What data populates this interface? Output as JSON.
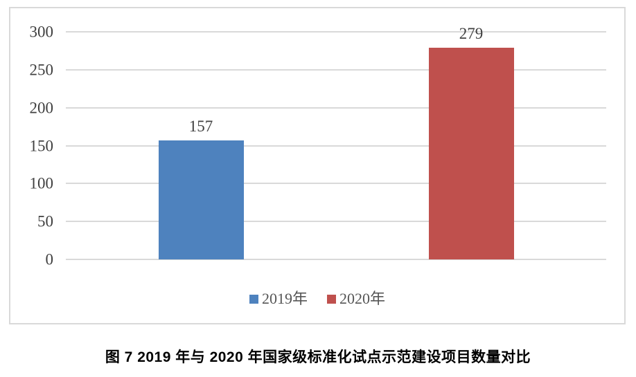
{
  "chart_data": {
    "type": "bar",
    "series": [
      {
        "name": "2019年",
        "value": 157,
        "color": "#4e82be"
      },
      {
        "name": "2020年",
        "value": 279,
        "color": "#bf504d"
      }
    ],
    "title": "",
    "xlabel": "",
    "ylabel": "",
    "ylim": [
      0,
      300
    ],
    "yticks": [
      0,
      50,
      100,
      150,
      200,
      250,
      300
    ],
    "grid": true,
    "legend_position": "bottom"
  },
  "colors": {
    "gridline": "#d9d9d9",
    "frame_border": "#d9d9d9",
    "axis_text": "#3f3f3f",
    "legend_text": "#555555",
    "caption_text": "#000000",
    "bar_2019": "#4e82be",
    "bar_2020": "#bf504d"
  },
  "caption": "图 7  2019 年与 2020 年国家级标准化试点示范建设项目数量对比"
}
